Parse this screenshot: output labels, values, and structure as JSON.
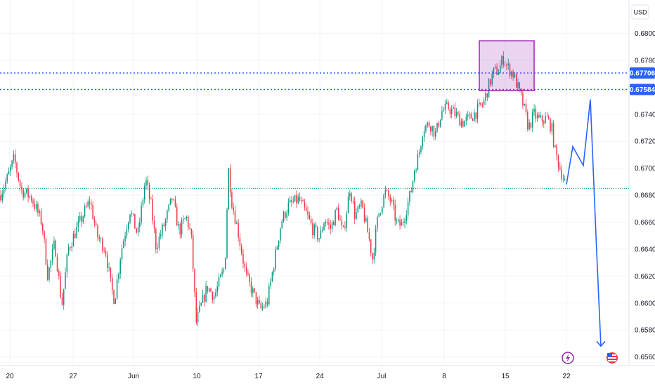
{
  "chart_data": {
    "type": "candlestick",
    "currency": "USD",
    "y_ticks": [
      "0.68000",
      "0.67800",
      "0.67400",
      "0.67200",
      "0.67000",
      "0.66800",
      "0.66600",
      "0.66400",
      "0.66200",
      "0.66000",
      "0.65800",
      "0.65600"
    ],
    "ylim": [
      0.6553,
      0.6825
    ],
    "x_labels": [
      "20",
      "27",
      "Jun",
      "10",
      "17",
      "24",
      "Jul",
      "8",
      "15",
      "22"
    ],
    "price_tags": [
      {
        "value": "0.67706",
        "color": "#2962ff",
        "line": "dotted"
      },
      {
        "value": "0.67584",
        "color": "#2962ff",
        "line": "dotted"
      }
    ],
    "reference_line": {
      "value": 0.6685,
      "color": "#089981",
      "style": "dotted"
    },
    "highlight_box": {
      "price_from": 0.67575,
      "price_to": 0.67945,
      "color": "#9c27b0"
    },
    "colors": {
      "up": "#089981",
      "down": "#f23645",
      "projection": "#2962ff"
    },
    "price_path": [
      [
        0,
        0.668
      ],
      [
        10,
        0.6692
      ],
      [
        20,
        0.6707
      ],
      [
        30,
        0.6684
      ],
      [
        45,
        0.6678
      ],
      [
        60,
        0.6659
      ],
      [
        68,
        0.662
      ],
      [
        78,
        0.6645
      ],
      [
        88,
        0.6598
      ],
      [
        97,
        0.664
      ],
      [
        105,
        0.665
      ],
      [
        118,
        0.6665
      ],
      [
        128,
        0.6676
      ],
      [
        138,
        0.665
      ],
      [
        150,
        0.664
      ],
      [
        158,
        0.6612
      ],
      [
        163,
        0.6602
      ],
      [
        172,
        0.6638
      ],
      [
        185,
        0.6669
      ],
      [
        196,
        0.665
      ],
      [
        207,
        0.6692
      ],
      [
        215,
        0.6672
      ],
      [
        222,
        0.6642
      ],
      [
        235,
        0.666
      ],
      [
        245,
        0.6678
      ],
      [
        255,
        0.6653
      ],
      [
        265,
        0.6664
      ],
      [
        272,
        0.665
      ],
      [
        276,
        0.6615
      ],
      [
        279,
        0.6585
      ],
      [
        285,
        0.6596
      ],
      [
        295,
        0.6612
      ],
      [
        305,
        0.6605
      ],
      [
        320,
        0.6627
      ],
      [
        325,
        0.67
      ],
      [
        330,
        0.6675
      ],
      [
        338,
        0.6655
      ],
      [
        350,
        0.662
      ],
      [
        362,
        0.6605
      ],
      [
        370,
        0.6595
      ],
      [
        380,
        0.66
      ],
      [
        390,
        0.663
      ],
      [
        400,
        0.666
      ],
      [
        410,
        0.6672
      ],
      [
        425,
        0.6677
      ],
      [
        435,
        0.6667
      ],
      [
        445,
        0.6655
      ],
      [
        455,
        0.6648
      ],
      [
        462,
        0.6663
      ],
      [
        470,
        0.6655
      ],
      [
        480,
        0.667
      ],
      [
        488,
        0.665
      ],
      [
        498,
        0.6686
      ],
      [
        505,
        0.6665
      ],
      [
        515,
        0.6672
      ],
      [
        525,
        0.6648
      ],
      [
        530,
        0.6633
      ],
      [
        538,
        0.6665
      ],
      [
        548,
        0.6682
      ],
      [
        556,
        0.6676
      ],
      [
        565,
        0.6658
      ],
      [
        572,
        0.6658
      ],
      [
        585,
        0.6683
      ],
      [
        590,
        0.67
      ],
      [
        596,
        0.671
      ],
      [
        602,
        0.673
      ],
      [
        612,
        0.6733
      ],
      [
        620,
        0.6725
      ],
      [
        628,
        0.6742
      ],
      [
        638,
        0.6745
      ],
      [
        648,
        0.674
      ],
      [
        658,
        0.6734
      ],
      [
        668,
        0.6737
      ],
      [
        678,
        0.6742
      ],
      [
        688,
        0.6748
      ],
      [
        696,
        0.6762
      ],
      [
        702,
        0.6771
      ],
      [
        710,
        0.6773
      ],
      [
        716,
        0.6782
      ],
      [
        722,
        0.6775
      ],
      [
        730,
        0.677
      ],
      [
        738,
        0.6758
      ],
      [
        745,
        0.6746
      ],
      [
        752,
        0.673
      ],
      [
        760,
        0.674
      ],
      [
        768,
        0.6735
      ],
      [
        778,
        0.6737
      ],
      [
        785,
        0.673
      ],
      [
        790,
        0.6712
      ],
      [
        798,
        0.6698
      ],
      [
        805,
        0.6688
      ]
    ],
    "projection_path": [
      [
        806,
        0.6688
      ],
      [
        815,
        0.6716
      ],
      [
        830,
        0.6702
      ],
      [
        840,
        0.6751
      ],
      [
        848,
        0.665
      ],
      [
        855,
        0.6568
      ]
    ]
  }
}
